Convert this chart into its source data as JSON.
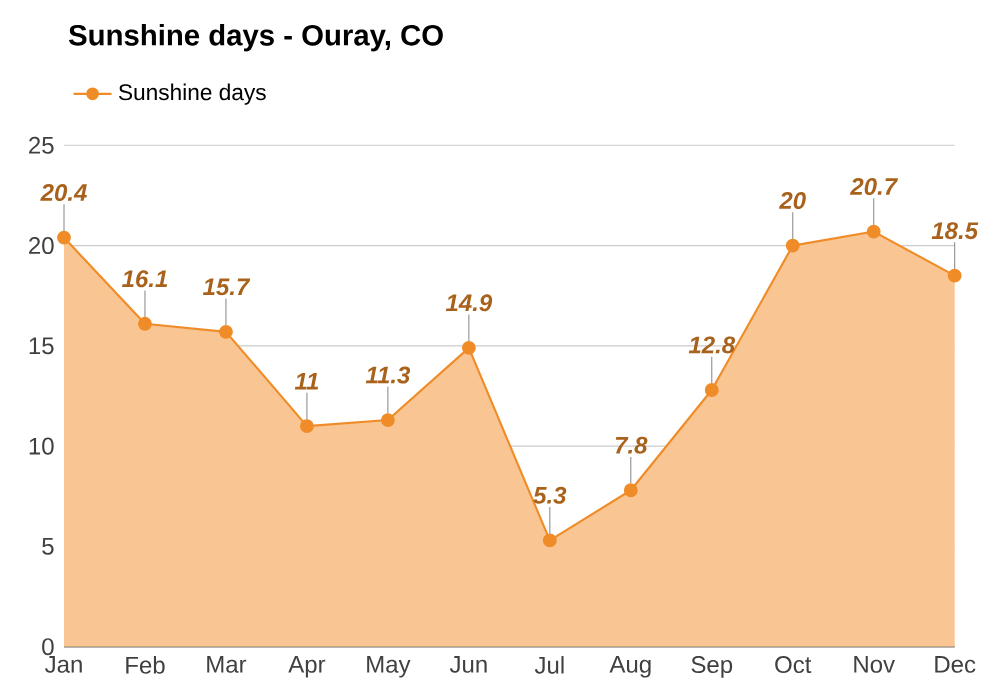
{
  "chart_data": {
    "type": "area",
    "title": "Sunshine days - Ouray, CO",
    "categories": [
      "Jan",
      "Feb",
      "Mar",
      "Apr",
      "May",
      "Jun",
      "Jul",
      "Aug",
      "Sep",
      "Oct",
      "Nov",
      "Dec"
    ],
    "series": [
      {
        "name": "Sunshine days",
        "color": "#f08c28",
        "values": [
          20.4,
          16.1,
          15.7,
          11,
          11.3,
          14.9,
          5.3,
          7.8,
          12.8,
          20,
          20.7,
          18.5
        ]
      }
    ],
    "ylim": [
      0,
      25
    ],
    "yticks": [
      0,
      5,
      10,
      15,
      20,
      25
    ],
    "grid": "y",
    "legend": "top left",
    "marker": "circle",
    "data_labels": true
  }
}
